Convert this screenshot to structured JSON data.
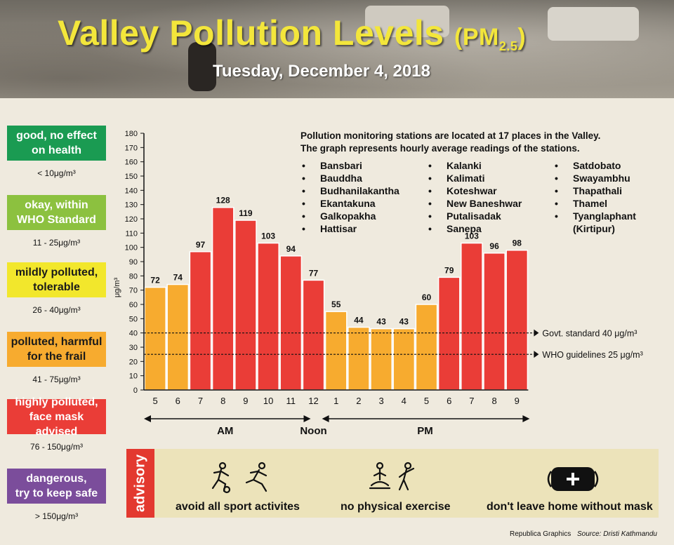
{
  "header": {
    "title": "Valley Pollution Levels",
    "title_unit": "(PM",
    "title_unit_sub": "2.5",
    "title_unit_close": ")",
    "date": "Tuesday, December 4, 2018"
  },
  "legend": [
    {
      "label_line1": "good, no effect",
      "label_line2": "on health",
      "range": "< 10μg/m³",
      "color": "#1a9b52"
    },
    {
      "label_line1": "okay, within",
      "label_line2": "WHO Standard",
      "range": "11 - 25μg/m³",
      "color": "#8cc13f"
    },
    {
      "label_line1": "mildly polluted,",
      "label_line2": "tolerable",
      "range": "26 - 40μg/m³",
      "color": "#f2e72c"
    },
    {
      "label_line1": "polluted, harmful",
      "label_line2": "for the frail",
      "range": "41 - 75μg/m³",
      "color": "#f7ab2f"
    },
    {
      "label_line1": "highly polluted,",
      "label_line2": "face mask advised",
      "range": "76 - 150μg/m³",
      "color": "#ea3d37"
    },
    {
      "label_line1": "dangerous,",
      "label_line2": "try to keep safe",
      "range": "> 150μg/m³",
      "color": "#7b4d9b"
    }
  ],
  "stations": {
    "line1": "Pollution monitoring stations are located at 17 places in the Valley.",
    "line2": "The graph represents hourly average readings of the stations.",
    "col1": [
      "Bansbari",
      "Bauddha",
      "Budhanilakantha",
      "Ekantakuna",
      "Galkopakha",
      "Hattisar"
    ],
    "col2": [
      "Kalanki",
      "Kalimati",
      "Koteshwar",
      "New Baneshwar",
      "Putalisadak",
      "Sanepa"
    ],
    "col3": [
      "Satdobato",
      "Swayambhu",
      "Thapathali",
      "Thamel",
      "Tyanglaphant",
      "(Kirtipur)"
    ]
  },
  "chart_data": {
    "type": "bar",
    "categories": [
      "5",
      "6",
      "7",
      "8",
      "9",
      "10",
      "11",
      "12",
      "1",
      "2",
      "3",
      "4",
      "5",
      "6",
      "7",
      "8",
      "9"
    ],
    "values": [
      72,
      74,
      97,
      128,
      119,
      103,
      94,
      77,
      55,
      44,
      43,
      43,
      60,
      79,
      103,
      96,
      98
    ],
    "ylabel": "μg/m³",
    "ylim": [
      0,
      180
    ],
    "ytick_step": 10,
    "grid": false,
    "bar_colors": {
      "polluted": "#f7ab2f",
      "highly_polluted": "#ea3d37"
    },
    "reference_lines": [
      {
        "value": 40,
        "label": "Govt. standard 40 μg/m³"
      },
      {
        "value": 25,
        "label": "WHO guidelines 25 μg/m³"
      }
    ],
    "periods": [
      {
        "label": "AM"
      },
      {
        "label": "Noon"
      },
      {
        "label": "PM"
      }
    ]
  },
  "advisory": {
    "tab": "advisory",
    "items": [
      "avoid all sport activites",
      "no physical exercise",
      "don't leave home without mask"
    ]
  },
  "footer": {
    "credit": "Republica Graphics",
    "source": "Source: Dristi Kathmandu"
  }
}
